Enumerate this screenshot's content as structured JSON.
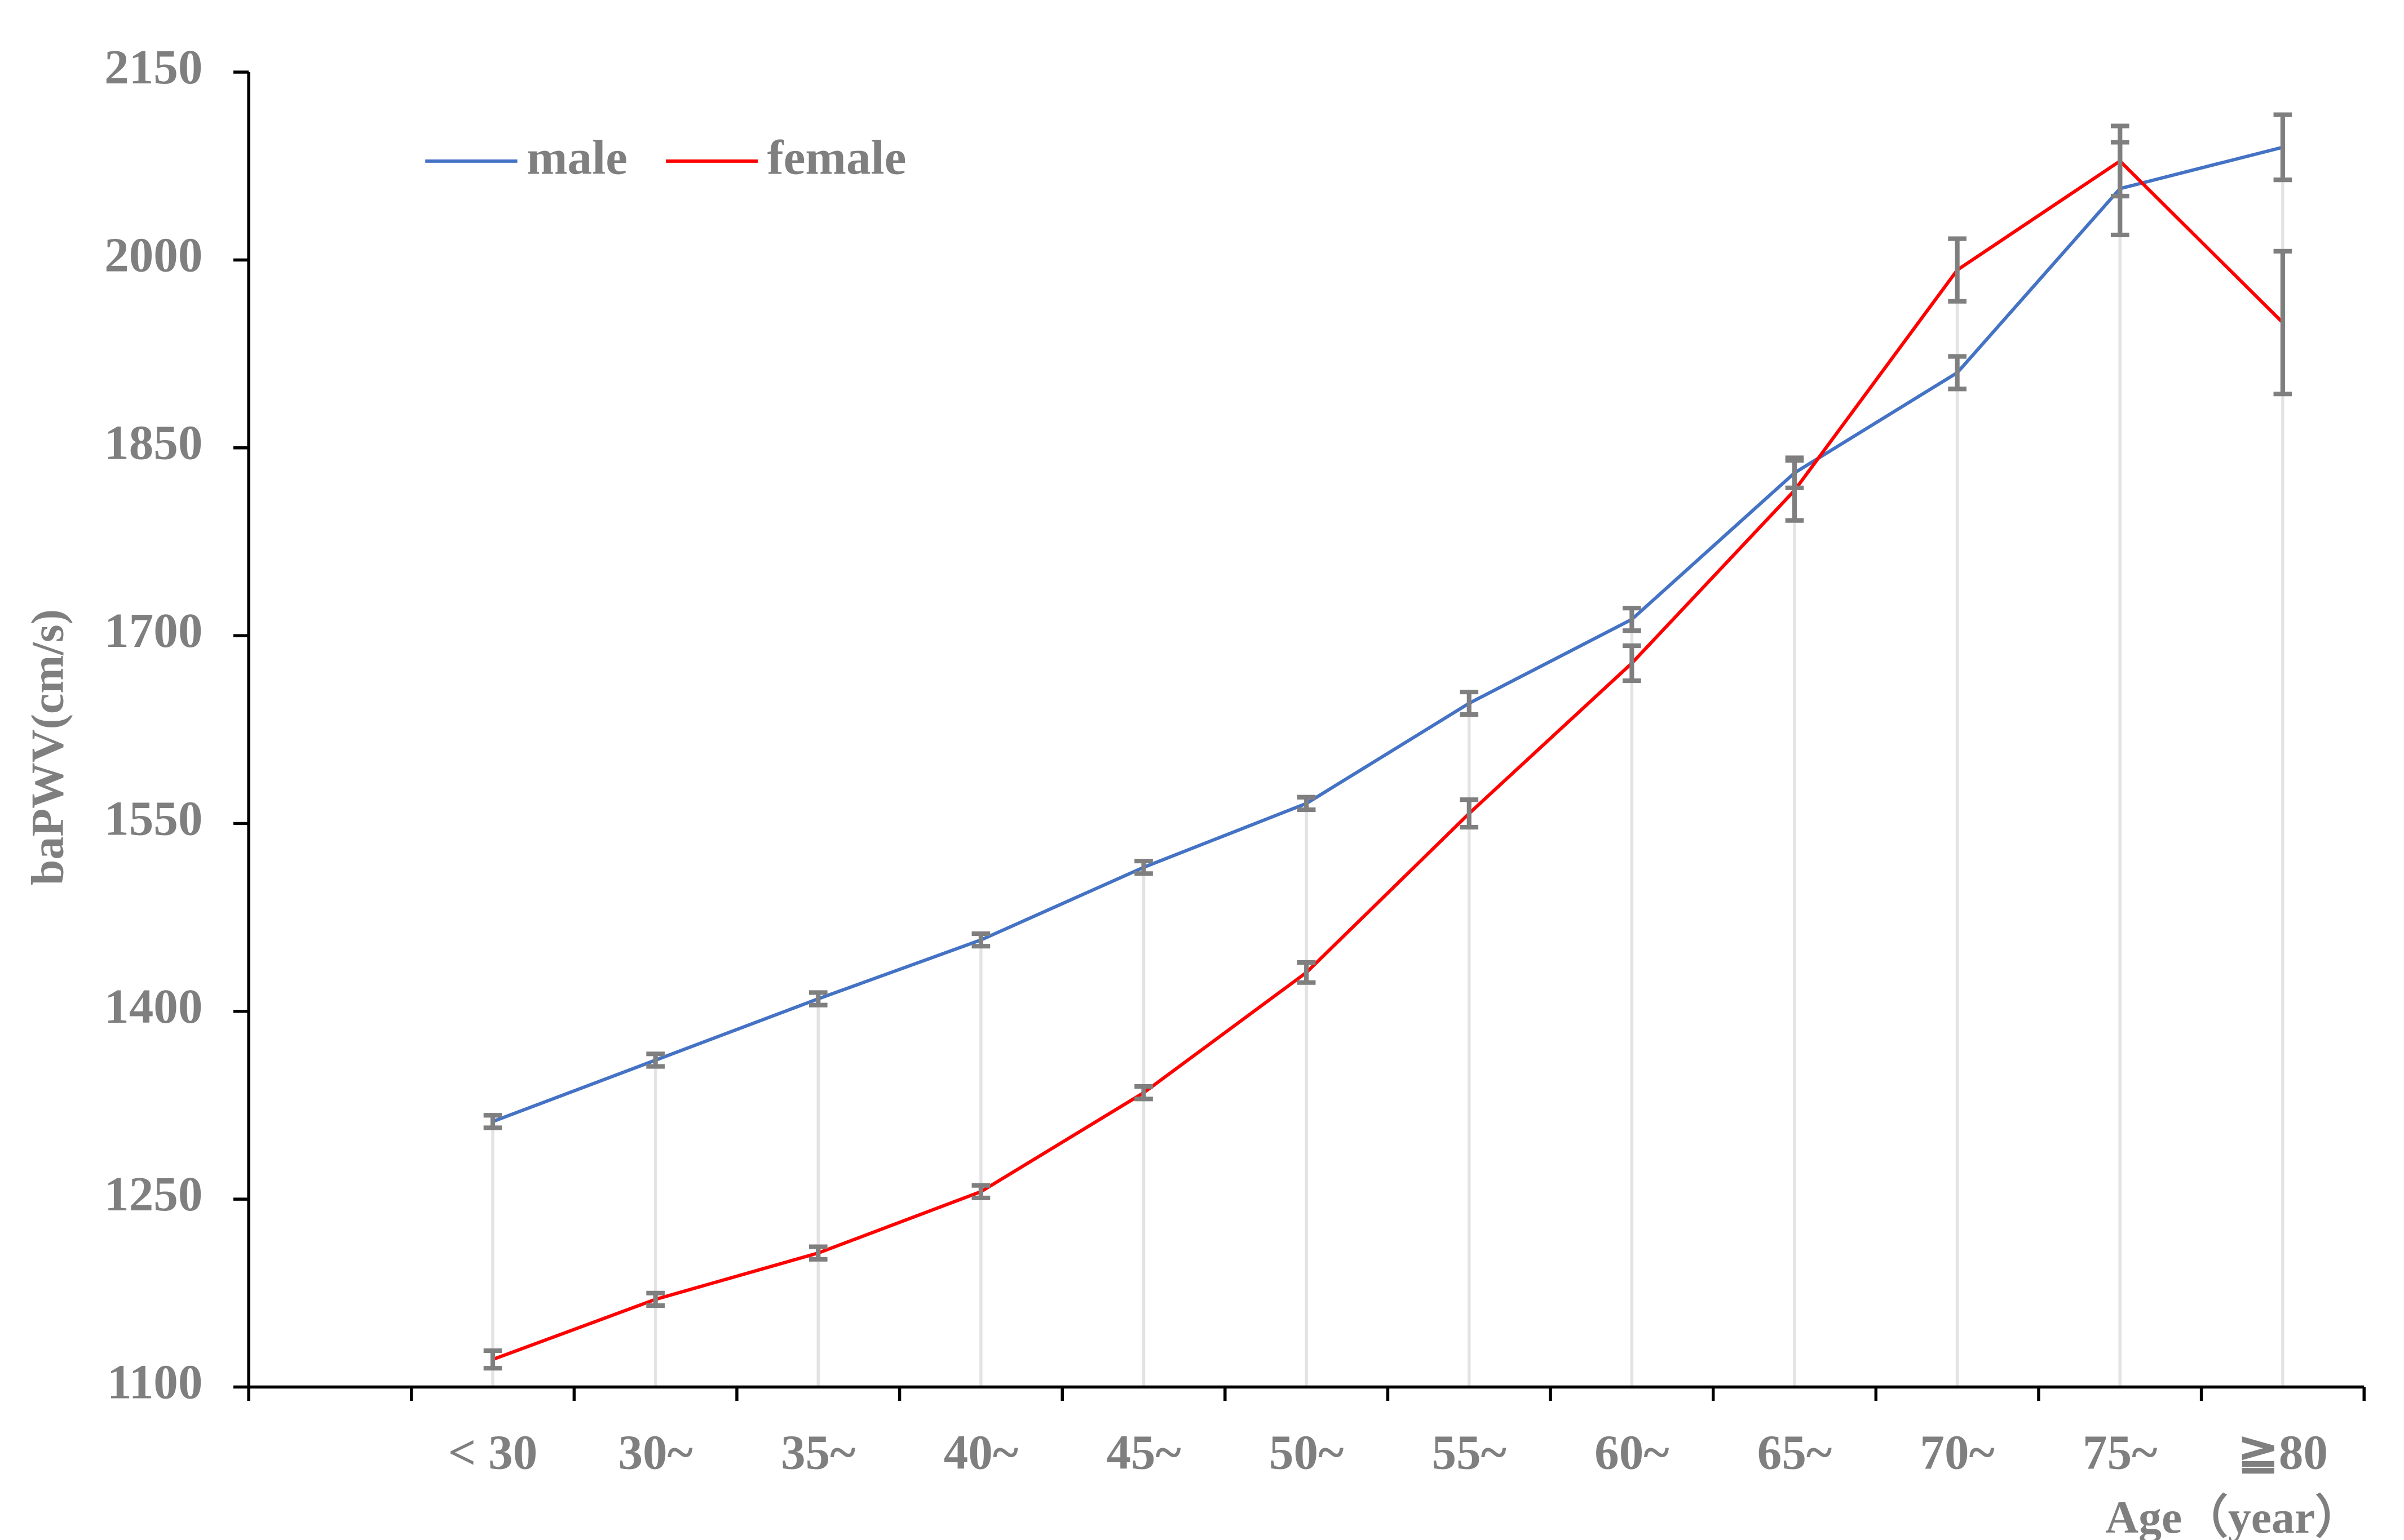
{
  "chart_data": {
    "type": "line",
    "y_label": "baPWV(cm/s)",
    "x_label": "Age（year）",
    "categories": [
      null,
      "< 30",
      "30~",
      "35~",
      "40~",
      "45~",
      "50~",
      "55~",
      "60~",
      "65~",
      "70~",
      "75~",
      "≧80"
    ],
    "series": [
      {
        "name": "male",
        "color": "#4472c4",
        "values": [
          null,
          1312,
          1361,
          1410,
          1457,
          1515,
          1566,
          1646,
          1713,
          1830,
          1910,
          2057,
          2090
        ],
        "errors": [
          null,
          5,
          5,
          5,
          5,
          5,
          5,
          9,
          9,
          12,
          13,
          37,
          26
        ]
      },
      {
        "name": "female",
        "color": "#ff0000",
        "values": [
          null,
          1122,
          1170,
          1207,
          1256,
          1335,
          1431,
          1558,
          1678,
          1816,
          1992,
          2079,
          1950
        ],
        "errors": [
          null,
          7,
          5,
          5,
          5,
          5,
          8,
          11,
          14,
          24,
          25,
          28,
          57
        ]
      }
    ],
    "ylim": [
      1100,
      2150
    ],
    "yticks": [
      1100,
      1250,
      1400,
      1550,
      1700,
      1850,
      2000,
      2150
    ],
    "error_color": "#7f7f7f",
    "legend": "top-left"
  }
}
